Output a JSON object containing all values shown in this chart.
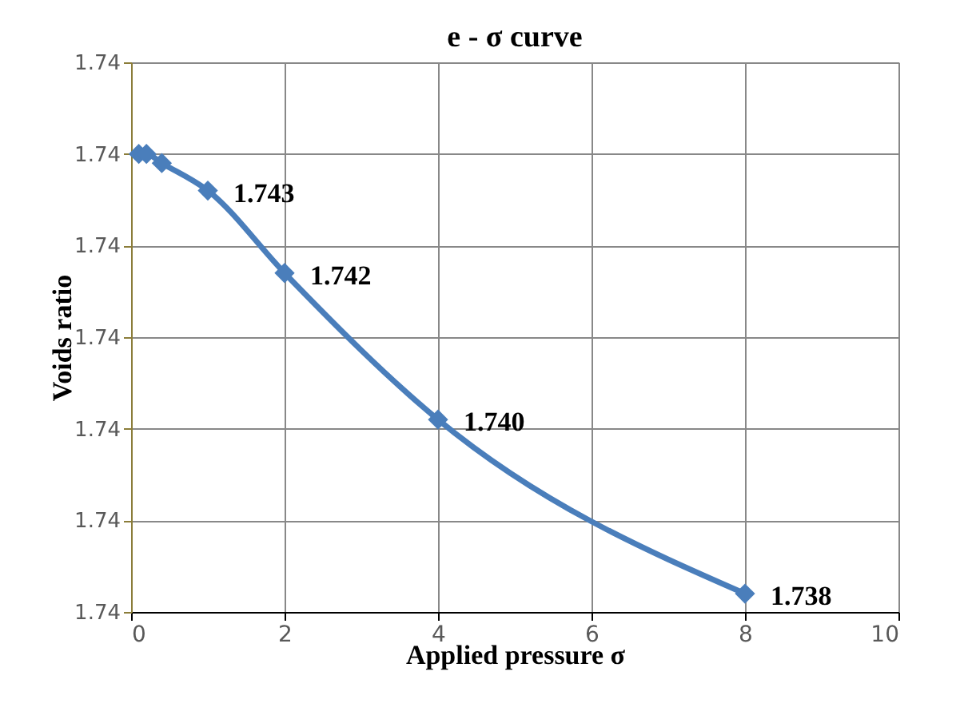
{
  "chart_data": {
    "type": "line",
    "title": "e - σ curve",
    "xlabel": "Applied pressure σ",
    "ylabel": "Voids ratio",
    "x": [
      0.1,
      0.2,
      0.4,
      1,
      2,
      4,
      8
    ],
    "series": [
      {
        "color": "#4a7ebb",
        "values": [
          1.7431,
          1.7431,
          1.743,
          1.7427,
          1.7418,
          1.7402,
          1.7383
        ],
        "value_labels": [
          null,
          null,
          null,
          "1.743",
          "1.742",
          "1.740",
          "1.738"
        ]
      }
    ],
    "xlim": [
      0,
      10
    ],
    "xticks": [
      0,
      2,
      4,
      6,
      8,
      10
    ],
    "ylim": [
      1.7381,
      1.7441
    ],
    "yticks": [
      {
        "value": 1.7381,
        "label": "1.74"
      },
      {
        "value": 1.7391,
        "label": "1.74"
      },
      {
        "value": 1.7401,
        "label": "1.74"
      },
      {
        "value": 1.7411,
        "label": "1.74"
      },
      {
        "value": 1.7421,
        "label": "1.74"
      },
      {
        "value": 1.7431,
        "label": "1.74"
      },
      {
        "value": 1.7441,
        "label": "1.74"
      }
    ],
    "grid": true,
    "marker": "diamond",
    "line_style": "solid"
  }
}
